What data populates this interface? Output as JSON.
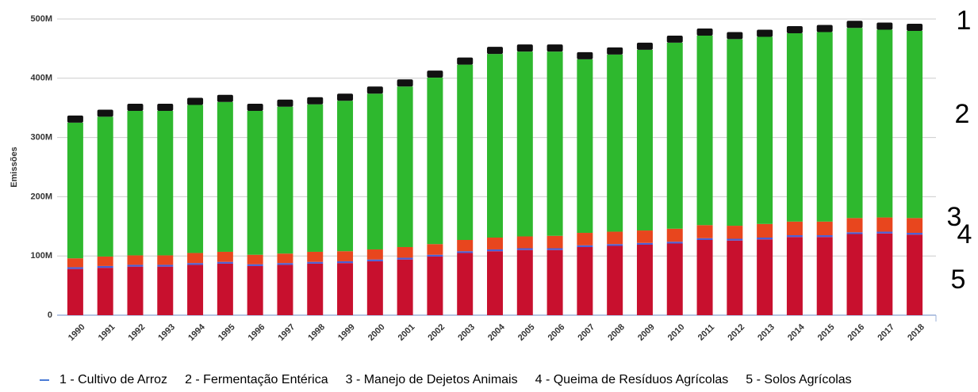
{
  "chart_data": {
    "type": "stacked-bar",
    "y_label": "Emissões",
    "categories": [
      "1990",
      "1991",
      "1992",
      "1993",
      "1994",
      "1995",
      "1996",
      "1997",
      "1998",
      "1999",
      "2000",
      "2001",
      "2002",
      "2003",
      "2004",
      "2005",
      "2006",
      "2007",
      "2008",
      "2009",
      "2010",
      "2011",
      "2012",
      "2013",
      "2014",
      "2015",
      "2016",
      "2017",
      "2018"
    ],
    "series": [
      {
        "name": "1 - Cultivo de Arroz",
        "color": "#111111",
        "values": [
          12000000.0,
          12000000.0,
          12000000.0,
          12000000.0,
          12000000.0,
          12000000.0,
          12000000.0,
          12000000.0,
          12000000.0,
          12000000.0,
          12000000.0,
          12000000.0,
          12000000.0,
          12000000.0,
          12000000.0,
          12000000.0,
          12000000.0,
          12000000.0,
          12000000.0,
          12000000.0,
          12000000.0,
          12000000.0,
          12000000.0,
          12000000.0,
          12000000.0,
          12000000.0,
          12000000.0,
          12000000.0,
          12000000.0
        ]
      },
      {
        "name": "2 - Fermentação Entérica",
        "color": "#2eb82e",
        "values": [
          229000000.0,
          236000000.0,
          244000000.0,
          244000000.0,
          250000000.0,
          253000000.0,
          243000000.0,
          248000000.0,
          249000000.0,
          254000000.0,
          263000000.0,
          271000000.0,
          281000000.0,
          296000000.0,
          310000000.0,
          312000000.0,
          311000000.0,
          293000000.0,
          299000000.0,
          305000000.0,
          314000000.0,
          320000000.0,
          315000000.0,
          316000000.0,
          318000000.0,
          320000000.0,
          321000000.0,
          317000000.0,
          316000000.0
        ]
      },
      {
        "name": "3 - Manejo de Dejetos Animais",
        "color": "#e8461e",
        "values": [
          15000000.0,
          16000000.0,
          16000000.0,
          16000000.0,
          17000000.0,
          17000000.0,
          16000000.0,
          16000000.0,
          17000000.0,
          17000000.0,
          17000000.0,
          18000000.0,
          18000000.0,
          19000000.0,
          20000000.0,
          20000000.0,
          21000000.0,
          21000000.0,
          21000000.0,
          21000000.0,
          22000000.0,
          22000000.0,
          22000000.0,
          23000000.0,
          23000000.0,
          23000000.0,
          24000000.0,
          24000000.0,
          25000000.0
        ]
      },
      {
        "name": "4 - Queima de Resíduos Agrícolas",
        "color": "#4a5fd6",
        "values": [
          3000000.0,
          3000000.0,
          3000000.0,
          3000000.0,
          3000000.0,
          3000000.0,
          3000000.0,
          3000000.0,
          3000000.0,
          3000000.0,
          3000000.0,
          3000000.0,
          3000000.0,
          3000000.0,
          3000000.0,
          3000000.0,
          3000000.0,
          3000000.0,
          3000000.0,
          3000000.0,
          3000000.0,
          3000000.0,
          3000000.0,
          3000000.0,
          3000000.0,
          3000000.0,
          3000000.0,
          3000000.0,
          3000000.0
        ]
      },
      {
        "name": "5 - Solos Agrícolas",
        "color": "#c8102e",
        "values": [
          78000000.0,
          80000000.0,
          82000000.0,
          82000000.0,
          85000000.0,
          87000000.0,
          83000000.0,
          85000000.0,
          87000000.0,
          88000000.0,
          91000000.0,
          94000000.0,
          99000000.0,
          105000000.0,
          108000000.0,
          110000000.0,
          110000000.0,
          115000000.0,
          117000000.0,
          119000000.0,
          121000000.0,
          127000000.0,
          126000000.0,
          128000000.0,
          132000000.0,
          132000000.0,
          137000000.0,
          138000000.0,
          136000000.0
        ]
      }
    ],
    "side_labels": [
      "1",
      "2",
      "3",
      "4",
      "5"
    ],
    "ylim": [
      0,
      500000000.0
    ],
    "yticks": [
      {
        "value": 0,
        "label": "0"
      },
      {
        "value": 100000000.0,
        "label": "100M"
      },
      {
        "value": 200000000.0,
        "label": "200M"
      },
      {
        "value": 300000000.0,
        "label": "300M"
      },
      {
        "value": 400000000.0,
        "label": "400M"
      },
      {
        "value": 500000000.0,
        "label": "500M"
      }
    ],
    "grid": true
  }
}
